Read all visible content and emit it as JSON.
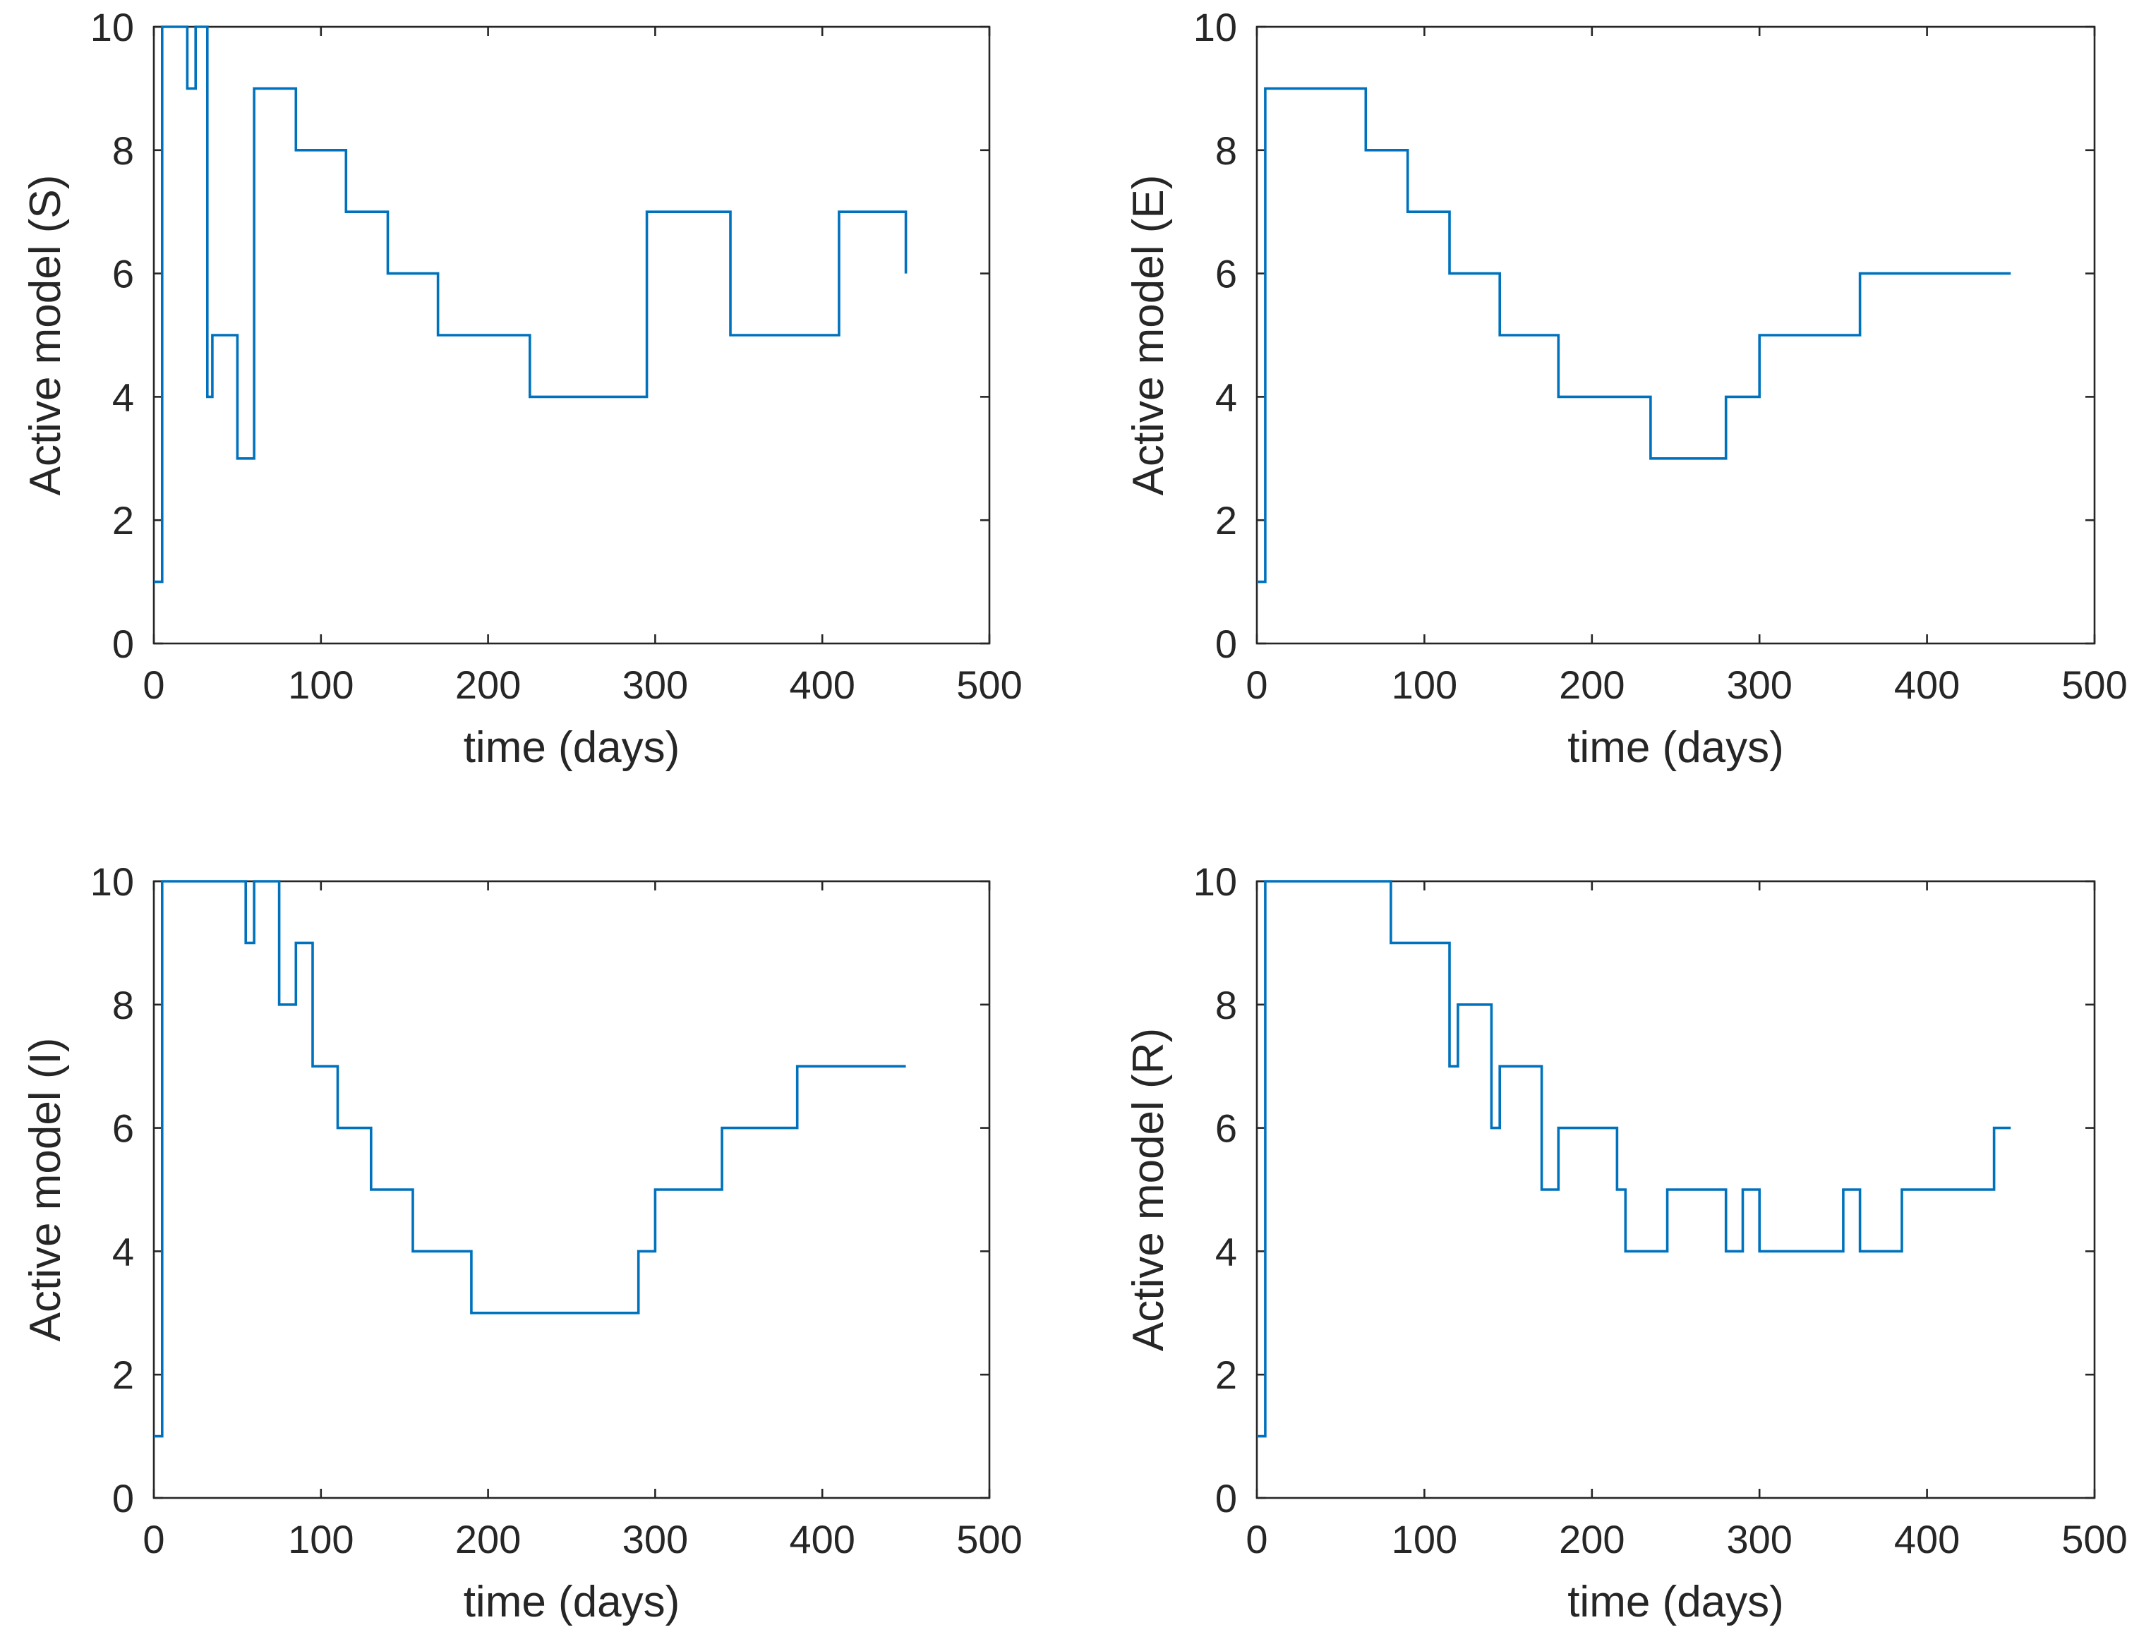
{
  "figure": {
    "line_color": "#0072BD",
    "axis_color": "#262626"
  },
  "chart_data": [
    {
      "type": "line",
      "step": true,
      "xlabel": "time (days)",
      "ylabel": "Active model (S)",
      "xlim": [
        0,
        500
      ],
      "ylim": [
        0,
        10
      ],
      "xticks": [
        0,
        100,
        200,
        300,
        400,
        500
      ],
      "yticks": [
        0,
        2,
        4,
        6,
        8,
        10
      ],
      "series": [
        {
          "name": "S",
          "x": [
            0,
            5,
            20,
            25,
            30,
            32,
            35,
            50,
            60,
            85,
            115,
            140,
            170,
            225,
            295,
            345,
            410,
            450
          ],
          "values": [
            1,
            10,
            9,
            10,
            10,
            4,
            5,
            3,
            9,
            8,
            7,
            6,
            5,
            4,
            7,
            5,
            7,
            6
          ]
        }
      ]
    },
    {
      "type": "line",
      "step": true,
      "xlabel": "time (days)",
      "ylabel": "Active model (E)",
      "xlim": [
        0,
        500
      ],
      "ylim": [
        0,
        10
      ],
      "xticks": [
        0,
        100,
        200,
        300,
        400,
        500
      ],
      "yticks": [
        0,
        2,
        4,
        6,
        8,
        10
      ],
      "series": [
        {
          "name": "E",
          "x": [
            0,
            5,
            65,
            90,
            115,
            145,
            180,
            235,
            280,
            300,
            360,
            450
          ],
          "values": [
            1,
            9,
            8,
            7,
            6,
            5,
            4,
            3,
            4,
            5,
            6,
            6
          ]
        }
      ]
    },
    {
      "type": "line",
      "step": true,
      "xlabel": "time (days)",
      "ylabel": "Active model (I)",
      "xlim": [
        0,
        500
      ],
      "ylim": [
        0,
        10
      ],
      "xticks": [
        0,
        100,
        200,
        300,
        400,
        500
      ],
      "yticks": [
        0,
        2,
        4,
        6,
        8,
        10
      ],
      "series": [
        {
          "name": "I",
          "x": [
            0,
            5,
            55,
            60,
            75,
            85,
            95,
            110,
            130,
            155,
            190,
            290,
            300,
            340,
            385,
            450
          ],
          "values": [
            1,
            10,
            9,
            10,
            8,
            9,
            7,
            6,
            5,
            4,
            3,
            4,
            5,
            6,
            7,
            7
          ]
        }
      ]
    },
    {
      "type": "line",
      "step": true,
      "xlabel": "time (days)",
      "ylabel": "Active model (R)",
      "xlim": [
        0,
        500
      ],
      "ylim": [
        0,
        10
      ],
      "xticks": [
        0,
        100,
        200,
        300,
        400,
        500
      ],
      "yticks": [
        0,
        2,
        4,
        6,
        8,
        10
      ],
      "series": [
        {
          "name": "R",
          "x": [
            0,
            5,
            80,
            115,
            120,
            140,
            145,
            170,
            180,
            215,
            220,
            245,
            280,
            290,
            300,
            350,
            360,
            385,
            440,
            450
          ],
          "values": [
            1,
            10,
            9,
            7,
            8,
            6,
            7,
            5,
            6,
            5,
            4,
            5,
            4,
            5,
            4,
            5,
            4,
            5,
            6,
            6
          ]
        }
      ]
    }
  ]
}
